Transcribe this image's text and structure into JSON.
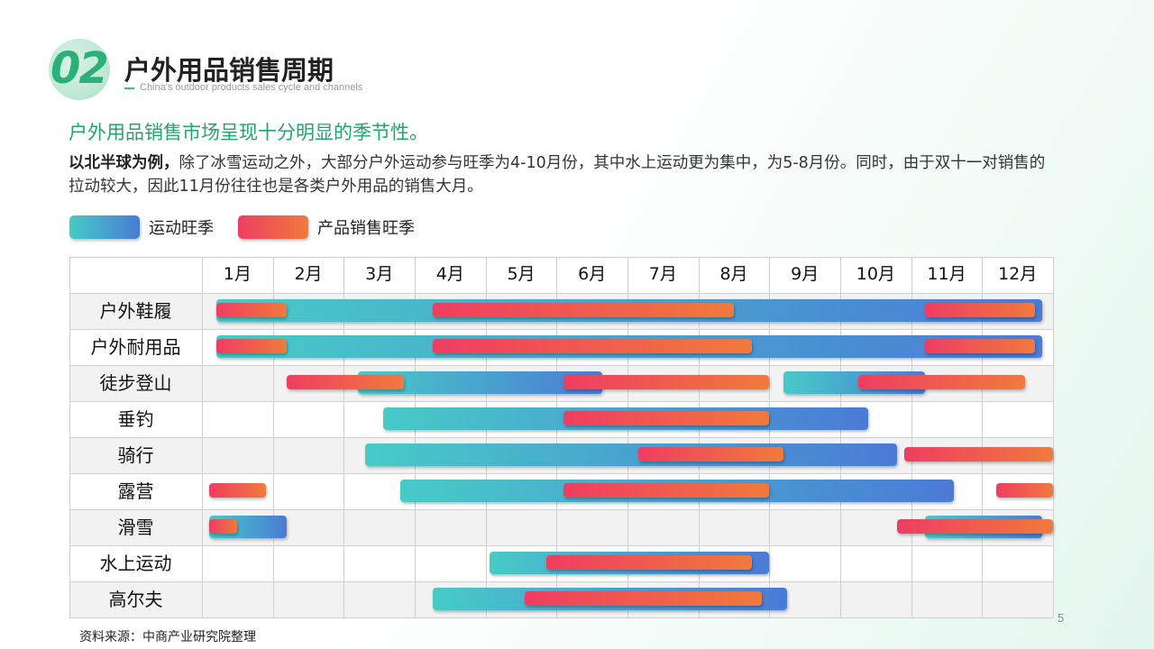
{
  "header": {
    "section_number": "02",
    "title": "户外用品销售周期",
    "subtitle": "China's outdoor products sales cycle and channels"
  },
  "headline": "户外用品销售市场呈现十分明显的季节性。",
  "paragraph": {
    "bold_lead": "以北半球为例，",
    "text": "除了冰雪运动之外，大部分户外运动参与旺季为4-10月份，其中水上运动更为集中，为5-8月份。同时，由于双十一对销售的拉动较大，因此11月份往往也是各类户外用品的销售大月。"
  },
  "legend": {
    "season_label": "运动旺季",
    "sales_label": "产品销售旺季"
  },
  "colors": {
    "season_start": "#47cbc7",
    "season_end": "#4a7bd6",
    "sales_start": "#ef3d62",
    "sales_end": "#f07a3c",
    "accent_green": "#23a46a"
  },
  "chart_data": {
    "type": "gantt",
    "months": [
      "1月",
      "2月",
      "3月",
      "4月",
      "5月",
      "6月",
      "7月",
      "8月",
      "9月",
      "10月",
      "11月",
      "12月"
    ],
    "units": "month index; 0 = start of 1月, 12 = end of 12月",
    "categories": [
      {
        "name": "户外鞋履",
        "season": [
          [
            0.2,
            11.85
          ]
        ],
        "sales": [
          [
            0.2,
            1.2
          ],
          [
            3.25,
            7.5
          ],
          [
            10.2,
            11.75
          ]
        ]
      },
      {
        "name": "户外耐用品",
        "season": [
          [
            0.2,
            11.85
          ]
        ],
        "sales": [
          [
            0.2,
            1.2
          ],
          [
            3.25,
            7.75
          ],
          [
            10.2,
            11.75
          ]
        ]
      },
      {
        "name": "徒步登山",
        "season": [
          [
            2.2,
            5.65
          ],
          [
            8.2,
            10.2
          ]
        ],
        "sales": [
          [
            1.2,
            2.85
          ],
          [
            5.1,
            8.0
          ],
          [
            9.25,
            11.6
          ]
        ]
      },
      {
        "name": "垂钓",
        "season": [
          [
            2.55,
            9.4
          ]
        ],
        "sales": [
          [
            5.1,
            8.0
          ]
        ]
      },
      {
        "name": "骑行",
        "season": [
          [
            2.3,
            9.8
          ]
        ],
        "sales": [
          [
            6.15,
            8.2
          ],
          [
            9.9,
            12.0
          ]
        ]
      },
      {
        "name": "露营",
        "season": [
          [
            2.8,
            10.6
          ]
        ],
        "sales": [
          [
            0.1,
            0.9
          ],
          [
            5.1,
            8.0
          ],
          [
            11.2,
            12.0
          ]
        ]
      },
      {
        "name": "滑雪",
        "season": [
          [
            0.1,
            1.2
          ],
          [
            10.2,
            11.85
          ]
        ],
        "sales": [
          [
            0.1,
            0.5
          ],
          [
            9.8,
            12.0
          ]
        ]
      },
      {
        "name": "水上运动",
        "season": [
          [
            4.05,
            8.0
          ]
        ],
        "sales": [
          [
            4.85,
            7.75
          ]
        ]
      },
      {
        "name": "高尔夫",
        "season": [
          [
            3.25,
            8.25
          ]
        ],
        "sales": [
          [
            4.55,
            7.9
          ]
        ]
      }
    ]
  },
  "footer": {
    "source": "资料来源：中商产业研究院整理",
    "page": "5"
  }
}
